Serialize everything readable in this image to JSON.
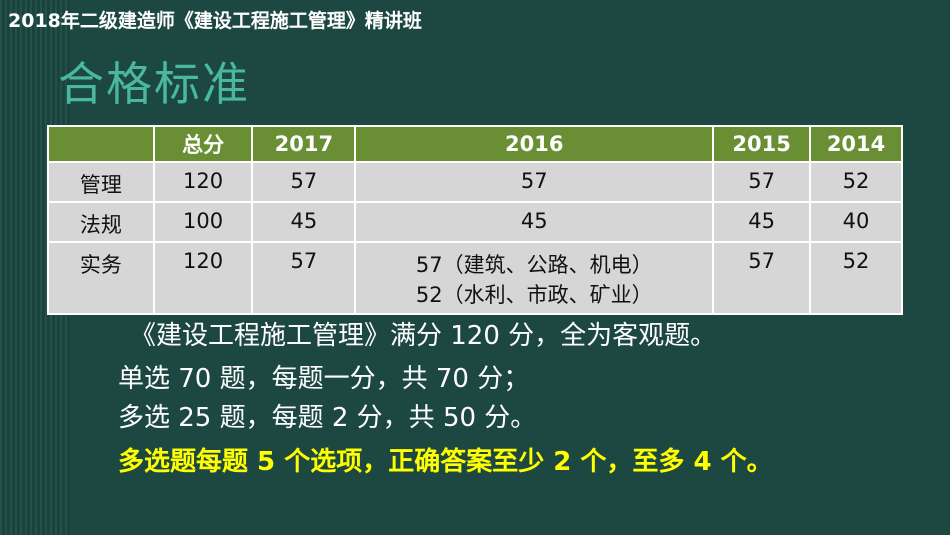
{
  "header": {
    "course": "2018年二级建造师《建设工程施工管理》精讲班"
  },
  "title": "合格标准",
  "table": {
    "columns": [
      "总分",
      "2017",
      "2016",
      "2015",
      "2014"
    ],
    "rows": [
      {
        "label": "管理",
        "cells": [
          120,
          57,
          57,
          57,
          52
        ]
      },
      {
        "label": "法规",
        "cells": [
          100,
          45,
          45,
          45,
          40
        ]
      },
      {
        "label": "实务",
        "cells": [
          120,
          57,
          [
            "57（建筑、公路、机电）",
            "52（水利、市政、矿业）"
          ],
          57,
          52
        ]
      }
    ]
  },
  "paragraphs": [
    "《建设工程施工管理》满分 120 分，全为客观题。",
    "单选 70 题，每题一分，共 70 分；",
    "多选 25 题，每题 2 分，共 50 分。",
    "多选题每题 5 个选项，正确答案至少 2 个，至多 4 个。"
  ]
}
